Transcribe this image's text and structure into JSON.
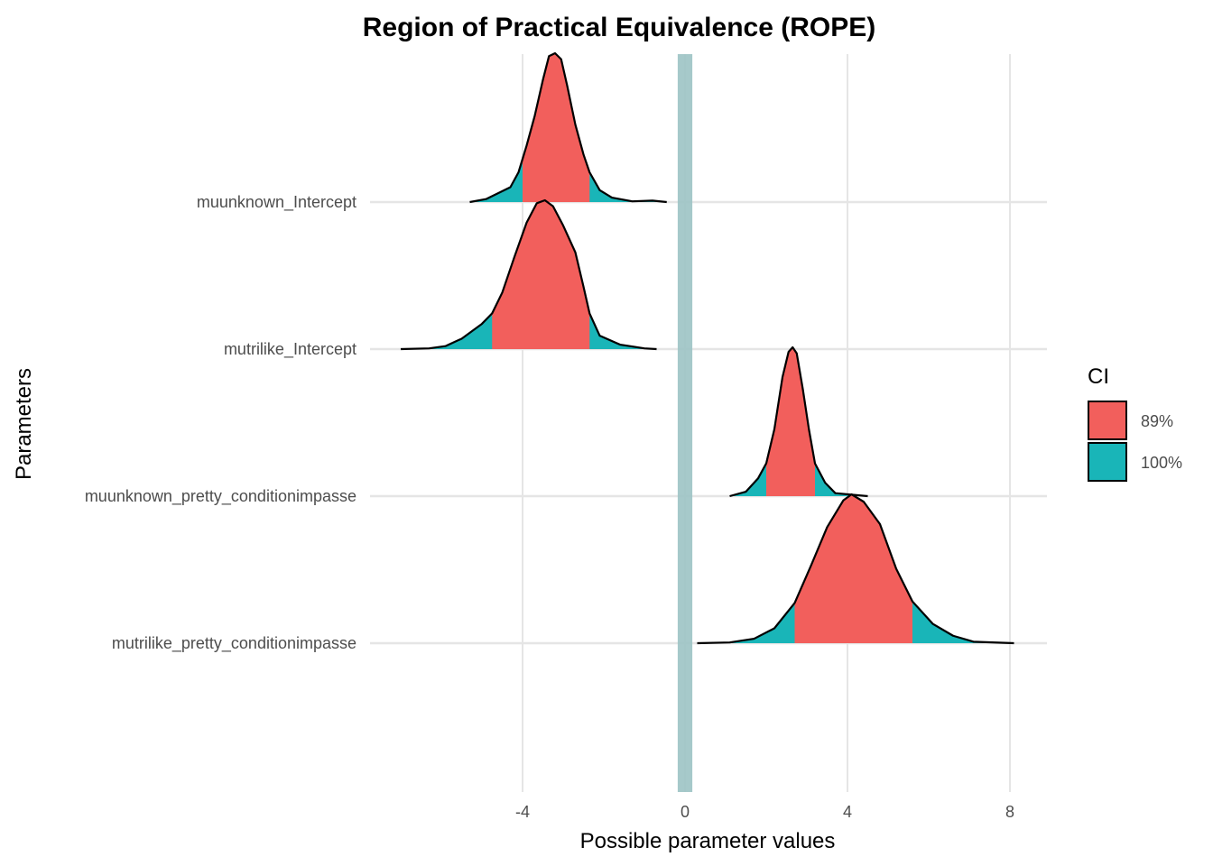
{
  "chart_data": {
    "type": "area",
    "title": "Region of Practical Equivalence (ROPE)",
    "xlabel": "Possible parameter values",
    "ylabel": "Parameters",
    "xlim": [
      -9.3,
      9.0
    ],
    "x_ticks": [
      -4,
      0,
      4,
      8
    ],
    "x_tick_labels": [
      "-4",
      "0",
      "4",
      "8"
    ],
    "grid": true,
    "rope": [
      -0.18,
      0.18
    ],
    "rope_color": "#9cc3c4",
    "legend": {
      "title": "CI",
      "position": "right",
      "entries": [
        {
          "label": "89%",
          "color": "#f25f5c"
        },
        {
          "label": "100%",
          "color": "#19b5b8"
        }
      ]
    },
    "parameters": [
      {
        "name": "muunknown_Intercept",
        "range": [
          -5.3,
          -0.45
        ],
        "ci89": [
          -4.0,
          -2.35
        ],
        "density": [
          [
            -5.3,
            0.0
          ],
          [
            -4.9,
            0.02
          ],
          [
            -4.6,
            0.06
          ],
          [
            -4.3,
            0.1
          ],
          [
            -4.1,
            0.2
          ],
          [
            -3.9,
            0.38
          ],
          [
            -3.7,
            0.58
          ],
          [
            -3.5,
            0.82
          ],
          [
            -3.35,
            0.98
          ],
          [
            -3.2,
            1.0
          ],
          [
            -3.05,
            0.96
          ],
          [
            -2.9,
            0.78
          ],
          [
            -2.7,
            0.52
          ],
          [
            -2.5,
            0.32
          ],
          [
            -2.35,
            0.2
          ],
          [
            -2.1,
            0.08
          ],
          [
            -1.8,
            0.03
          ],
          [
            -1.3,
            0.005
          ],
          [
            -0.8,
            0.01
          ],
          [
            -0.45,
            0.0
          ]
        ]
      },
      {
        "name": "mutrilike_Intercept",
        "range": [
          -7.0,
          -0.7
        ],
        "ci89": [
          -4.75,
          -2.35
        ],
        "density": [
          [
            -7.0,
            0.0
          ],
          [
            -6.3,
            0.005
          ],
          [
            -5.9,
            0.02
          ],
          [
            -5.5,
            0.07
          ],
          [
            -5.0,
            0.17
          ],
          [
            -4.75,
            0.24
          ],
          [
            -4.5,
            0.38
          ],
          [
            -4.2,
            0.62
          ],
          [
            -3.9,
            0.85
          ],
          [
            -3.65,
            0.98
          ],
          [
            -3.45,
            1.0
          ],
          [
            -3.25,
            0.96
          ],
          [
            -3.0,
            0.83
          ],
          [
            -2.7,
            0.65
          ],
          [
            -2.5,
            0.42
          ],
          [
            -2.35,
            0.24
          ],
          [
            -2.1,
            0.09
          ],
          [
            -1.6,
            0.03
          ],
          [
            -1.0,
            0.005
          ],
          [
            -0.7,
            0.0
          ]
        ]
      },
      {
        "name": "muunknown_pretty_conditionimpasse",
        "range": [
          1.1,
          4.5
        ],
        "ci89": [
          2.0,
          3.2
        ],
        "density": [
          [
            1.1,
            0.0
          ],
          [
            1.5,
            0.03
          ],
          [
            1.8,
            0.12
          ],
          [
            2.0,
            0.22
          ],
          [
            2.2,
            0.45
          ],
          [
            2.4,
            0.8
          ],
          [
            2.55,
            0.97
          ],
          [
            2.65,
            1.0
          ],
          [
            2.75,
            0.96
          ],
          [
            2.9,
            0.72
          ],
          [
            3.05,
            0.45
          ],
          [
            3.2,
            0.22
          ],
          [
            3.45,
            0.09
          ],
          [
            3.7,
            0.02
          ],
          [
            4.5,
            0.0
          ]
        ]
      },
      {
        "name": "mutrilike_pretty_conditionimpasse",
        "range": [
          0.3,
          8.1
        ],
        "ci89": [
          2.7,
          5.6
        ],
        "density": [
          [
            0.3,
            0.0
          ],
          [
            1.1,
            0.005
          ],
          [
            1.7,
            0.03
          ],
          [
            2.2,
            0.1
          ],
          [
            2.7,
            0.27
          ],
          [
            3.1,
            0.52
          ],
          [
            3.5,
            0.78
          ],
          [
            3.9,
            0.96
          ],
          [
            4.1,
            1.0
          ],
          [
            4.4,
            0.95
          ],
          [
            4.8,
            0.8
          ],
          [
            5.2,
            0.5
          ],
          [
            5.6,
            0.28
          ],
          [
            6.1,
            0.13
          ],
          [
            6.6,
            0.05
          ],
          [
            7.1,
            0.01
          ],
          [
            8.1,
            0.0
          ]
        ]
      }
    ]
  }
}
